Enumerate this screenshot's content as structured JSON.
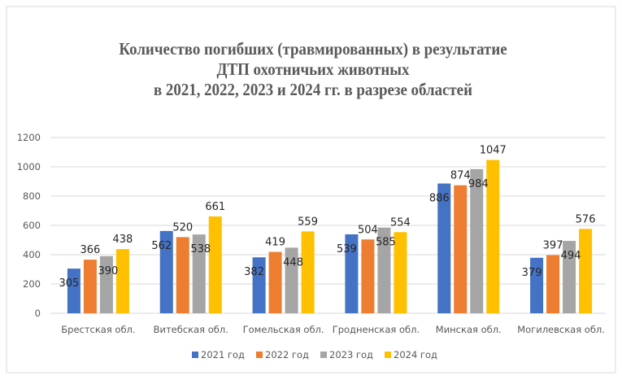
{
  "chart_data": {
    "type": "bar",
    "title": [
      "Количество погибших (травмированных) в результатие",
      "ДТП  охотничьих животных",
      "в 2021, 2022, 2023 и 2024 гг. в разрезе областей"
    ],
    "categories": [
      "Брестская обл.",
      "Витебская обл.",
      "Гомельская обл.",
      "Гродненская обл.",
      "Минская обл.",
      "Могилевская обл."
    ],
    "series": [
      {
        "name": "2021 год",
        "color": "#4472C4",
        "values": [
          305,
          562,
          382,
          539,
          886,
          379
        ]
      },
      {
        "name": "2022 год",
        "color": "#ED7D31",
        "values": [
          366,
          520,
          419,
          504,
          874,
          397
        ]
      },
      {
        "name": "2023 год",
        "color": "#A5A5A5",
        "values": [
          390,
          538,
          448,
          585,
          984,
          494
        ]
      },
      {
        "name": "2024 год",
        "color": "#FFC000",
        "values": [
          438,
          661,
          559,
          554,
          1047,
          576
        ]
      }
    ],
    "yticks": [
      "0",
      "200",
      "400",
      "600",
      "800",
      "1000",
      "1200"
    ],
    "ylim": [
      0,
      1200
    ],
    "grid": true,
    "legend": "bottom",
    "xlabel": "",
    "ylabel": ""
  }
}
